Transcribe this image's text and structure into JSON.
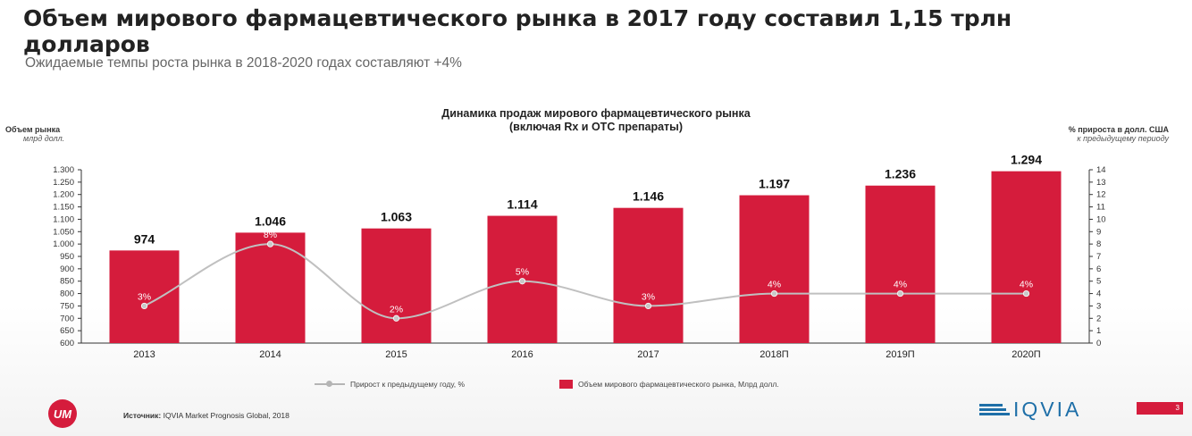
{
  "slide": {
    "title": "Объем мирового фармацевтического рынка в 2017 году составил 1,15 трлн долларов",
    "subtitle": "Ожидаемые темпы роста рынка в 2018-2020 годах составляют +4%",
    "source_label": "Источник:",
    "source_text": "IQVIA Market Prognosis Global, 2018",
    "page_number": "3",
    "logo_left": "UM",
    "logo_right": "IQVIA"
  },
  "chart_data": {
    "type": "bar",
    "title": "Динамика продаж мирового фармацевтического рынка",
    "subtitle": "(включая Rx и OTC препараты)",
    "categories": [
      "2013",
      "2014",
      "2015",
      "2016",
      "2017",
      "2018П",
      "2019П",
      "2020П"
    ],
    "left_axis": {
      "label": "Объем рынка",
      "unit": "млрд долл.",
      "ylim": [
        600,
        1300
      ],
      "step": 50,
      "ticks": [
        "600",
        "650",
        "700",
        "750",
        "800",
        "850",
        "900",
        "950",
        "1.000",
        "1.050",
        "1.100",
        "1.150",
        "1.200",
        "1.250",
        "1.300"
      ]
    },
    "right_axis": {
      "label": "% прироста в долл. США",
      "unit": "к предыдущему периоду",
      "ylim": [
        0,
        14
      ],
      "step": 1,
      "ticks": [
        "0",
        "1",
        "2",
        "3",
        "4",
        "5",
        "6",
        "7",
        "8",
        "9",
        "10",
        "11",
        "12",
        "13",
        "14"
      ]
    },
    "series": [
      {
        "name": "Объем мирового фармацевтического рынка, Млрд долл.",
        "type": "bar",
        "axis": "left",
        "values": [
          974,
          1046,
          1063,
          1114,
          1146,
          1197,
          1236,
          1294
        ],
        "labels": [
          "974",
          "1.046",
          "1.063",
          "1.114",
          "1.146",
          "1.197",
          "1.236",
          "1.294"
        ],
        "color": "#d51c3c"
      },
      {
        "name": "Прирост к предыдущему году, %",
        "type": "line",
        "axis": "right",
        "smooth": true,
        "values": [
          3,
          8,
          2,
          5,
          3,
          4,
          4,
          4
        ],
        "labels": [
          "3%",
          "8%",
          "2%",
          "5%",
          "3%",
          "4%",
          "4%",
          "4%"
        ],
        "color": "#c0c0c0"
      }
    ],
    "grid": false,
    "legend_position": "bottom"
  }
}
